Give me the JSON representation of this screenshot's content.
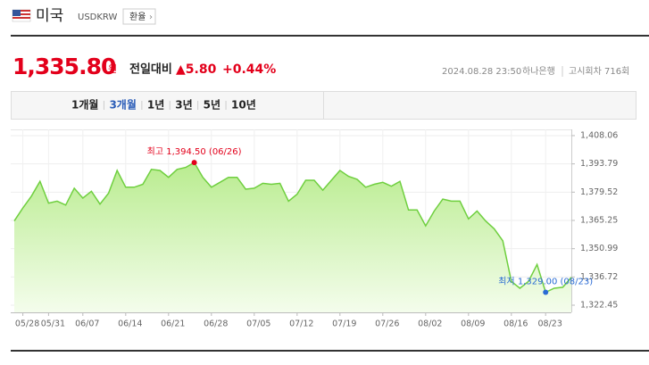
{
  "header": {
    "country": "미국",
    "code": "USDKRW",
    "button": "환율"
  },
  "quote": {
    "price": "1,335.80",
    "unit": "원",
    "change_label": "전일대비",
    "change": "▲5.80",
    "change_pct": "+0.44%",
    "timestamp": "2024.08.28 23:50",
    "bank": "하나은행",
    "round": "고시회차 716회"
  },
  "tabs": {
    "items": [
      "1개월",
      "3개월",
      "1년",
      "3년",
      "5년",
      "10년"
    ],
    "active": 1
  },
  "chart_data": {
    "type": "line",
    "color": "#6fcf3f",
    "grid": true,
    "max_label": "최고 1,394.50 (06/26)",
    "min_label": "최저 1,329.00 (08/23)",
    "categories": [
      null,
      "05/28",
      null,
      null,
      "05/31",
      null,
      null,
      null,
      "06/07",
      null,
      null,
      null,
      null,
      "06/14",
      null,
      null,
      null,
      null,
      "06/21",
      null,
      null,
      null,
      null,
      "06/28",
      null,
      null,
      null,
      null,
      "07/05",
      null,
      null,
      null,
      null,
      "07/12",
      null,
      null,
      null,
      null,
      "07/19",
      null,
      null,
      null,
      null,
      "07/26",
      null,
      null,
      null,
      null,
      "08/02",
      null,
      null,
      null,
      null,
      "08/09",
      null,
      null,
      null,
      null,
      "08/16",
      null,
      null,
      null,
      "08/23",
      null,
      null,
      null
    ],
    "values": [
      1365.0,
      1371.5,
      1377.5,
      1385.0,
      1374.0,
      1375.0,
      1373.0,
      1381.5,
      1376.5,
      1380.0,
      1373.5,
      1379.0,
      1390.5,
      1382.0,
      1382.0,
      1383.5,
      1391.0,
      1390.5,
      1387.0,
      1391.0,
      1392.0,
      1394.5,
      1387.0,
      1382.0,
      1384.5,
      1387.0,
      1387.0,
      1381.0,
      1381.5,
      1384.0,
      1383.5,
      1384.0,
      1375.0,
      1378.5,
      1385.5,
      1385.5,
      1380.5,
      1385.5,
      1390.5,
      1387.5,
      1386.0,
      1382.0,
      1383.5,
      1384.5,
      1382.5,
      1385.0,
      1370.5,
      1370.5,
      1362.5,
      1370.0,
      1376.0,
      1375.0,
      1375.0,
      1366.0,
      1370.0,
      1365.0,
      1361.0,
      1355.0,
      1334.5,
      1331.0,
      1334.5,
      1343.0,
      1329.0,
      1331.0,
      1331.5,
      1336.5
    ],
    "ylim": [
      1318.85,
      1411.2
    ],
    "yticks": [
      {
        "value": 1408.06,
        "label": "1,408.06"
      },
      {
        "value": 1393.79,
        "label": "1,393.79"
      },
      {
        "value": 1379.52,
        "label": "1,379.52"
      },
      {
        "value": 1365.25,
        "label": "1,365.25"
      },
      {
        "value": 1350.99,
        "label": "1,350.99"
      },
      {
        "value": 1336.72,
        "label": "1,336.72"
      },
      {
        "value": 1322.45,
        "label": "1,322.45"
      }
    ]
  }
}
